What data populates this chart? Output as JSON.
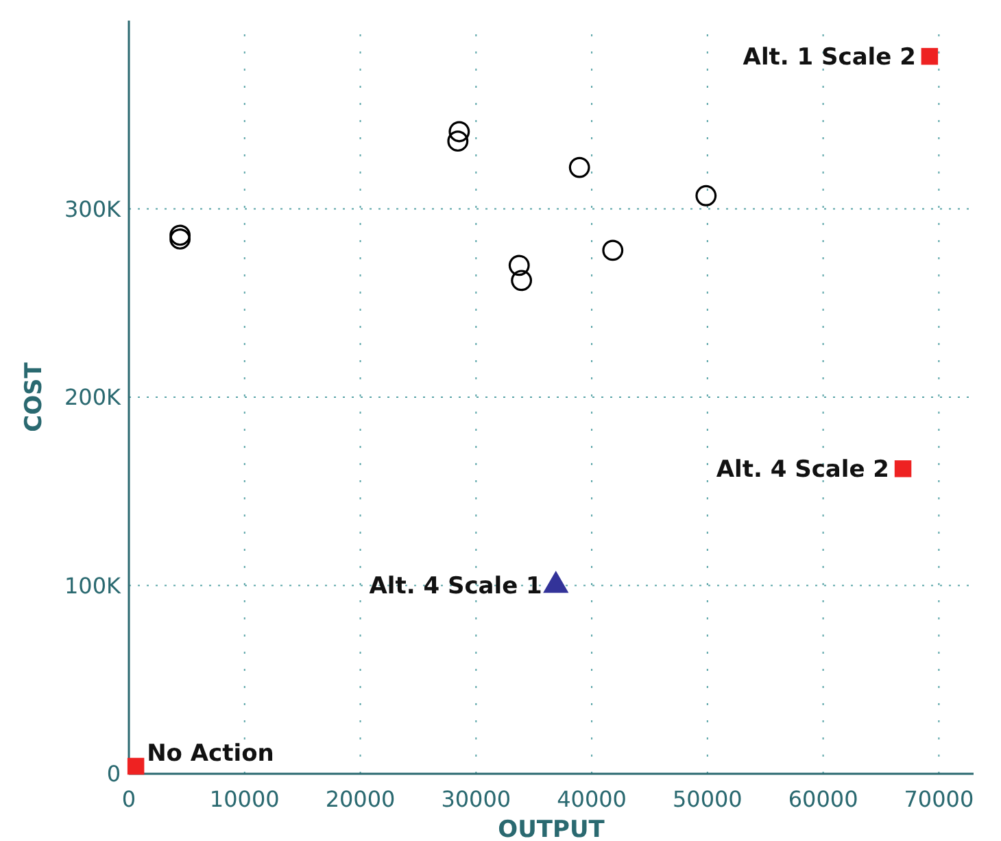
{
  "chart_data": {
    "type": "scatter",
    "xlabel": "OUTPUT",
    "ylabel": "COST",
    "xlim": [
      0,
      73000
    ],
    "ylim": [
      0,
      400000
    ],
    "xticks": [
      0,
      10000,
      20000,
      30000,
      40000,
      50000,
      60000,
      70000
    ],
    "yticks": [
      0,
      {
        "value": 100000,
        "label": "100K"
      },
      {
        "value": 200000,
        "label": "200K"
      },
      {
        "value": 300000,
        "label": "300K"
      }
    ],
    "grid": true,
    "series": [
      {
        "color": "#000000",
        "marker": "circle",
        "x": [
          4420,
          4420,
          28550,
          28430,
          38940,
          49880,
          33730,
          33930,
          41820
        ],
        "values": [
          286000,
          284000,
          341000,
          336000,
          322000,
          307000,
          270000,
          262000,
          278000
        ]
      },
      {
        "color": "#ee2222",
        "marker": "square",
        "x": [
          600,
          69200,
          66900
        ],
        "values": [
          4000,
          381000,
          162000
        ]
      },
      {
        "color": "#333399",
        "marker": "triangle",
        "x": [
          36900
        ],
        "values": [
          100000
        ]
      }
    ],
    "annotations": [
      {
        "text": "No Action",
        "x": 600,
        "y": 4000
      },
      {
        "text": "Alt. 1 Scale 2",
        "x": 69200,
        "y": 381000
      },
      {
        "text": "Alt. 4 Scale 2",
        "x": 66900,
        "y": 162000
      },
      {
        "text": "Alt. 4 Scale 1",
        "x": 36900,
        "y": 100000
      }
    ]
  }
}
